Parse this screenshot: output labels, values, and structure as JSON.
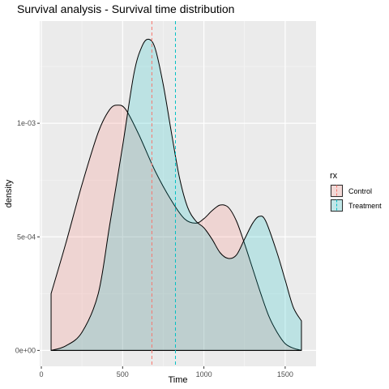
{
  "chart_data": {
    "type": "area",
    "title": "Survival analysis - Survival time distribution",
    "xlabel": "Time",
    "ylabel": "density",
    "xlim": [
      -10,
      1690
    ],
    "ylim": [
      -7e-05,
      0.00145
    ],
    "x_ticks": [
      0,
      500,
      1000,
      1500
    ],
    "x_tick_labels": [
      "0",
      "500",
      "1000",
      "1500"
    ],
    "y_ticks": [
      0,
      0.0005,
      0.001
    ],
    "y_tick_labels": [
      "0e+00",
      "5e-04",
      "1e-03"
    ],
    "grid": true,
    "legend": {
      "title": "rx",
      "placement": "right"
    },
    "series": [
      {
        "name": "Control",
        "fill": "#F8766D",
        "line": "#000000",
        "mean": 680,
        "x": [
          60,
          150,
          250,
          350,
          420,
          470,
          520,
          600,
          700,
          800,
          880,
          950,
          1000,
          1050,
          1100,
          1150,
          1200,
          1250,
          1300,
          1350,
          1400,
          1450,
          1500,
          1550,
          1600
        ],
        "y": [
          0.00025,
          0.00047,
          0.00073,
          0.00096,
          0.00106,
          0.00108,
          0.00106,
          0.00095,
          0.00079,
          0.00066,
          0.00058,
          0.00056,
          0.00058,
          0.000615,
          0.00064,
          0.00063,
          0.00057,
          0.00047,
          0.00036,
          0.00025,
          0.00015,
          8e-05,
          3e-05,
          1e-05,
          0.0
        ]
      },
      {
        "name": "Treatment",
        "fill": "#00BFC4",
        "line": "#000000",
        "mean": 825,
        "x": [
          60,
          150,
          250,
          350,
          420,
          500,
          570,
          620,
          660,
          700,
          750,
          800,
          850,
          900,
          950,
          1000,
          1050,
          1100,
          1150,
          1200,
          1250,
          1300,
          1340,
          1380,
          1450,
          1500,
          1550,
          1600
        ],
        "y": [
          0.0,
          2e-05,
          8e-05,
          0.00025,
          0.00055,
          0.0009,
          0.00122,
          0.00134,
          0.00137,
          0.00133,
          0.00117,
          0.00096,
          0.00076,
          0.00063,
          0.00057,
          0.00054,
          0.00049,
          0.00043,
          0.000405,
          0.00042,
          0.00049,
          0.00056,
          0.00059,
          0.00057,
          0.00043,
          0.00031,
          0.00019,
          0.00013
        ]
      }
    ]
  }
}
